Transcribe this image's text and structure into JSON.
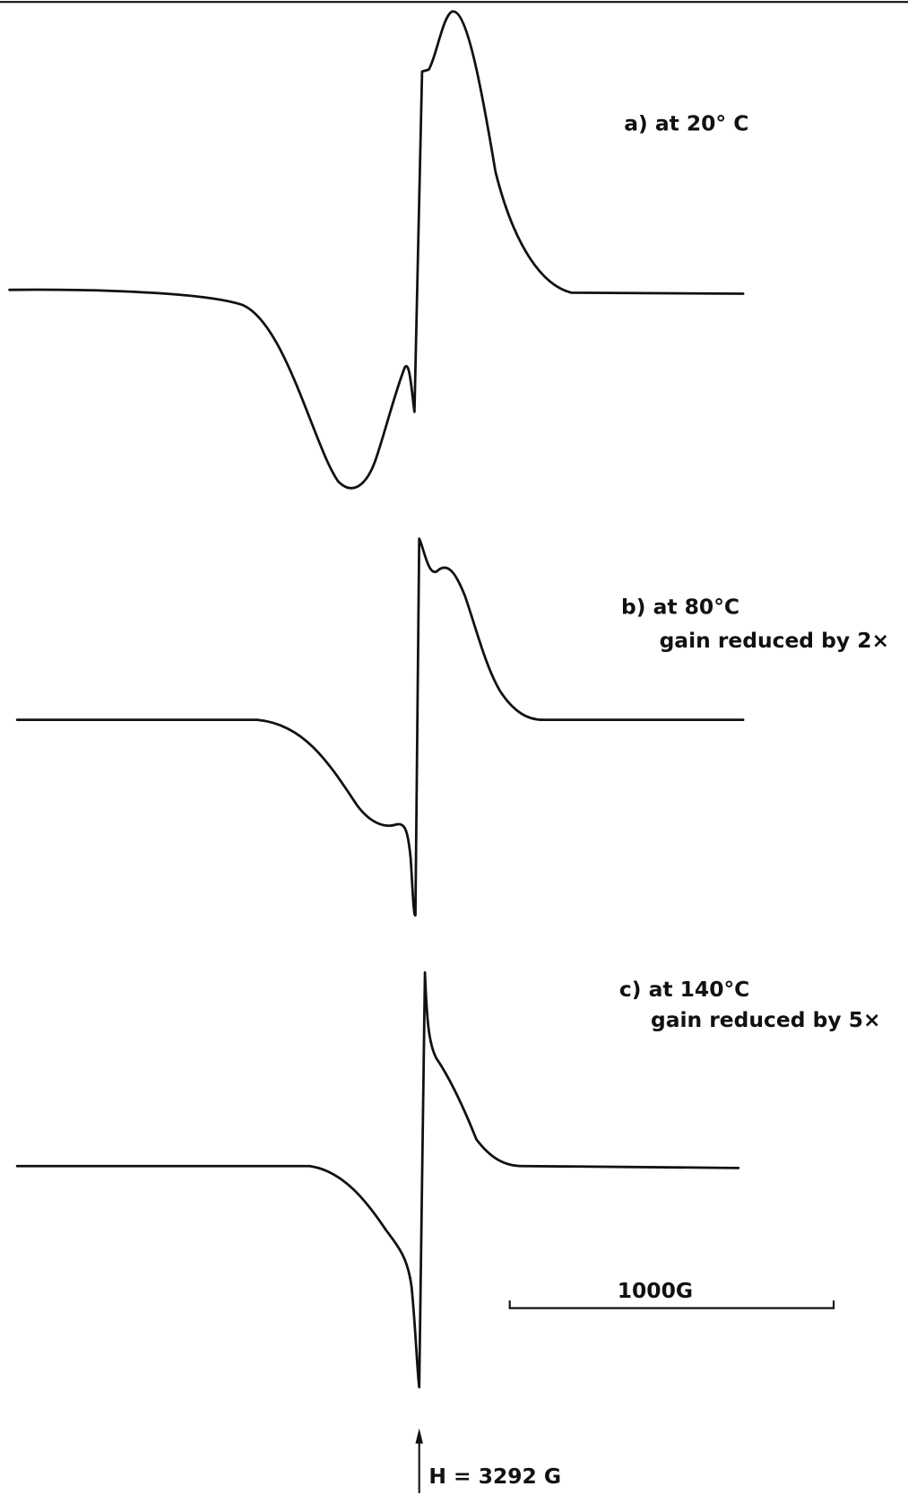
{
  "spectra": [
    {
      "label": "a) at 20° C"
    },
    {
      "label": "b) at 80°C",
      "note": "gain reduced by 2×"
    },
    {
      "label": "c) at 140°C",
      "note": "gain reduced by 5×"
    }
  ],
  "scale_bar": {
    "label": "1000G"
  },
  "field_marker": {
    "label": "H = 3292 G"
  }
}
